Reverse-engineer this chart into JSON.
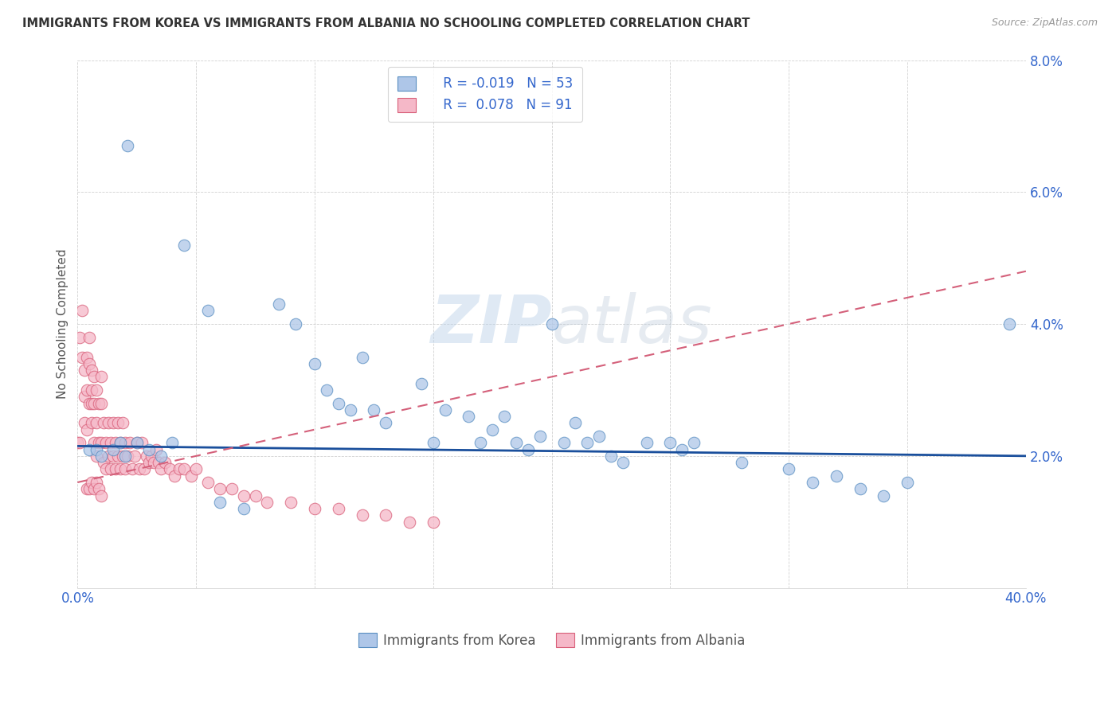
{
  "title": "IMMIGRANTS FROM KOREA VS IMMIGRANTS FROM ALBANIA NO SCHOOLING COMPLETED CORRELATION CHART",
  "source": "Source: ZipAtlas.com",
  "ylabel": "No Schooling Completed",
  "xlim": [
    0.0,
    0.4
  ],
  "ylim": [
    0.0,
    0.08
  ],
  "korea_color": "#aec6e8",
  "albania_color": "#f5b8c8",
  "korea_edge_color": "#5a8fc2",
  "albania_edge_color": "#d9607a",
  "trend_korea_color": "#1a4f9c",
  "trend_albania_color": "#d4607a",
  "legend_text_color": "#3366cc",
  "legend_label_color": "#333333",
  "watermark": "ZIPatlas",
  "title_color": "#333333",
  "source_color": "#999999",
  "grid_color": "#cccccc",
  "tick_color": "#3366cc",
  "ylabel_color": "#555555",
  "korea_x": [
    0.021,
    0.045,
    0.055,
    0.085,
    0.092,
    0.1,
    0.105,
    0.11,
    0.115,
    0.12,
    0.125,
    0.13,
    0.145,
    0.15,
    0.155,
    0.165,
    0.17,
    0.175,
    0.18,
    0.185,
    0.19,
    0.195,
    0.2,
    0.205,
    0.21,
    0.215,
    0.22,
    0.225,
    0.23,
    0.24,
    0.25,
    0.255,
    0.26,
    0.28,
    0.3,
    0.31,
    0.32,
    0.33,
    0.34,
    0.35,
    0.005,
    0.008,
    0.01,
    0.015,
    0.018,
    0.02,
    0.025,
    0.03,
    0.035,
    0.04,
    0.393,
    0.06,
    0.07
  ],
  "korea_y": [
    0.067,
    0.052,
    0.042,
    0.043,
    0.04,
    0.034,
    0.03,
    0.028,
    0.027,
    0.035,
    0.027,
    0.025,
    0.031,
    0.022,
    0.027,
    0.026,
    0.022,
    0.024,
    0.026,
    0.022,
    0.021,
    0.023,
    0.04,
    0.022,
    0.025,
    0.022,
    0.023,
    0.02,
    0.019,
    0.022,
    0.022,
    0.021,
    0.022,
    0.019,
    0.018,
    0.016,
    0.017,
    0.015,
    0.014,
    0.016,
    0.021,
    0.021,
    0.02,
    0.021,
    0.022,
    0.02,
    0.022,
    0.021,
    0.02,
    0.022,
    0.04,
    0.013,
    0.012
  ],
  "albania_x": [
    0.0,
    0.001,
    0.001,
    0.002,
    0.002,
    0.003,
    0.003,
    0.003,
    0.004,
    0.004,
    0.004,
    0.005,
    0.005,
    0.005,
    0.006,
    0.006,
    0.006,
    0.006,
    0.007,
    0.007,
    0.007,
    0.008,
    0.008,
    0.008,
    0.009,
    0.009,
    0.01,
    0.01,
    0.01,
    0.011,
    0.011,
    0.012,
    0.012,
    0.013,
    0.013,
    0.014,
    0.014,
    0.015,
    0.015,
    0.016,
    0.016,
    0.017,
    0.017,
    0.018,
    0.018,
    0.019,
    0.019,
    0.02,
    0.02,
    0.021,
    0.022,
    0.023,
    0.024,
    0.025,
    0.026,
    0.027,
    0.028,
    0.029,
    0.03,
    0.031,
    0.032,
    0.033,
    0.034,
    0.035,
    0.037,
    0.039,
    0.041,
    0.043,
    0.045,
    0.048,
    0.05,
    0.055,
    0.06,
    0.065,
    0.07,
    0.075,
    0.08,
    0.09,
    0.1,
    0.11,
    0.12,
    0.13,
    0.14,
    0.15,
    0.004,
    0.005,
    0.006,
    0.007,
    0.008,
    0.009,
    0.01
  ],
  "albania_y": [
    0.022,
    0.038,
    0.022,
    0.042,
    0.035,
    0.033,
    0.029,
    0.025,
    0.035,
    0.03,
    0.024,
    0.038,
    0.034,
    0.028,
    0.033,
    0.03,
    0.028,
    0.025,
    0.032,
    0.028,
    0.022,
    0.03,
    0.025,
    0.02,
    0.028,
    0.022,
    0.032,
    0.028,
    0.022,
    0.025,
    0.019,
    0.022,
    0.018,
    0.025,
    0.02,
    0.022,
    0.018,
    0.025,
    0.02,
    0.022,
    0.018,
    0.025,
    0.02,
    0.022,
    0.018,
    0.025,
    0.02,
    0.022,
    0.018,
    0.02,
    0.022,
    0.018,
    0.02,
    0.022,
    0.018,
    0.022,
    0.018,
    0.02,
    0.019,
    0.02,
    0.019,
    0.021,
    0.019,
    0.018,
    0.019,
    0.018,
    0.017,
    0.018,
    0.018,
    0.017,
    0.018,
    0.016,
    0.015,
    0.015,
    0.014,
    0.014,
    0.013,
    0.013,
    0.012,
    0.012,
    0.011,
    0.011,
    0.01,
    0.01,
    0.015,
    0.015,
    0.016,
    0.015,
    0.016,
    0.015,
    0.014
  ],
  "korea_trend": [
    0.0215,
    0.02
  ],
  "albania_trend_start": 0.016,
  "albania_trend_end": 0.048
}
